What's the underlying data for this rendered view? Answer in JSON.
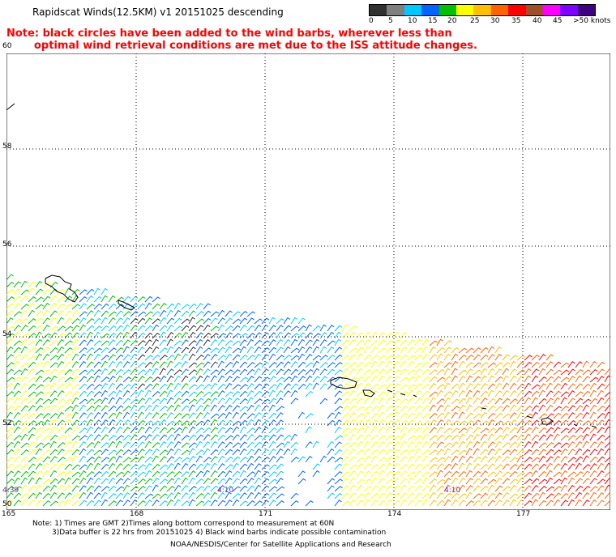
{
  "title": "Rapidscat Winds(12.5KM) v1 20151025 descending",
  "note": {
    "line1": "Note: black circles have been added to the wind barbs, wherever less than",
    "line2": "optimal wind retrieval conditions are met due to the ISS attitude changes."
  },
  "legend": {
    "labels": [
      "0",
      "5",
      "10",
      "15",
      "20",
      "25",
      "30",
      "35",
      "40",
      "45",
      ">50 knots"
    ],
    "colors": [
      "#303030",
      "#7f7f7f",
      "#00c8ff",
      "#0064ff",
      "#00c000",
      "#ffff00",
      "#ffc000",
      "#ff6400",
      "#ff0000",
      "#a05028",
      "#ff00ff",
      "#8000ff",
      "#400080"
    ]
  },
  "axes": {
    "lat_labels": [
      "60",
      "58",
      "56",
      "54",
      "52",
      "50"
    ],
    "lon_labels": [
      "165",
      "168",
      "171",
      "174",
      "177"
    ]
  },
  "times": [
    "4:39",
    "4:10",
    "4:10"
  ],
  "footer": {
    "line1": "Note: 1) Times are GMT 2)Times along bottom correspond to measurement at 60N",
    "line2": "3)Data buffer is 22 hrs from 20151025 4) Black wind barbs indicate possible contamination",
    "line3": "NOAA/NESDIS/Center for Satellite Applications and Research"
  }
}
